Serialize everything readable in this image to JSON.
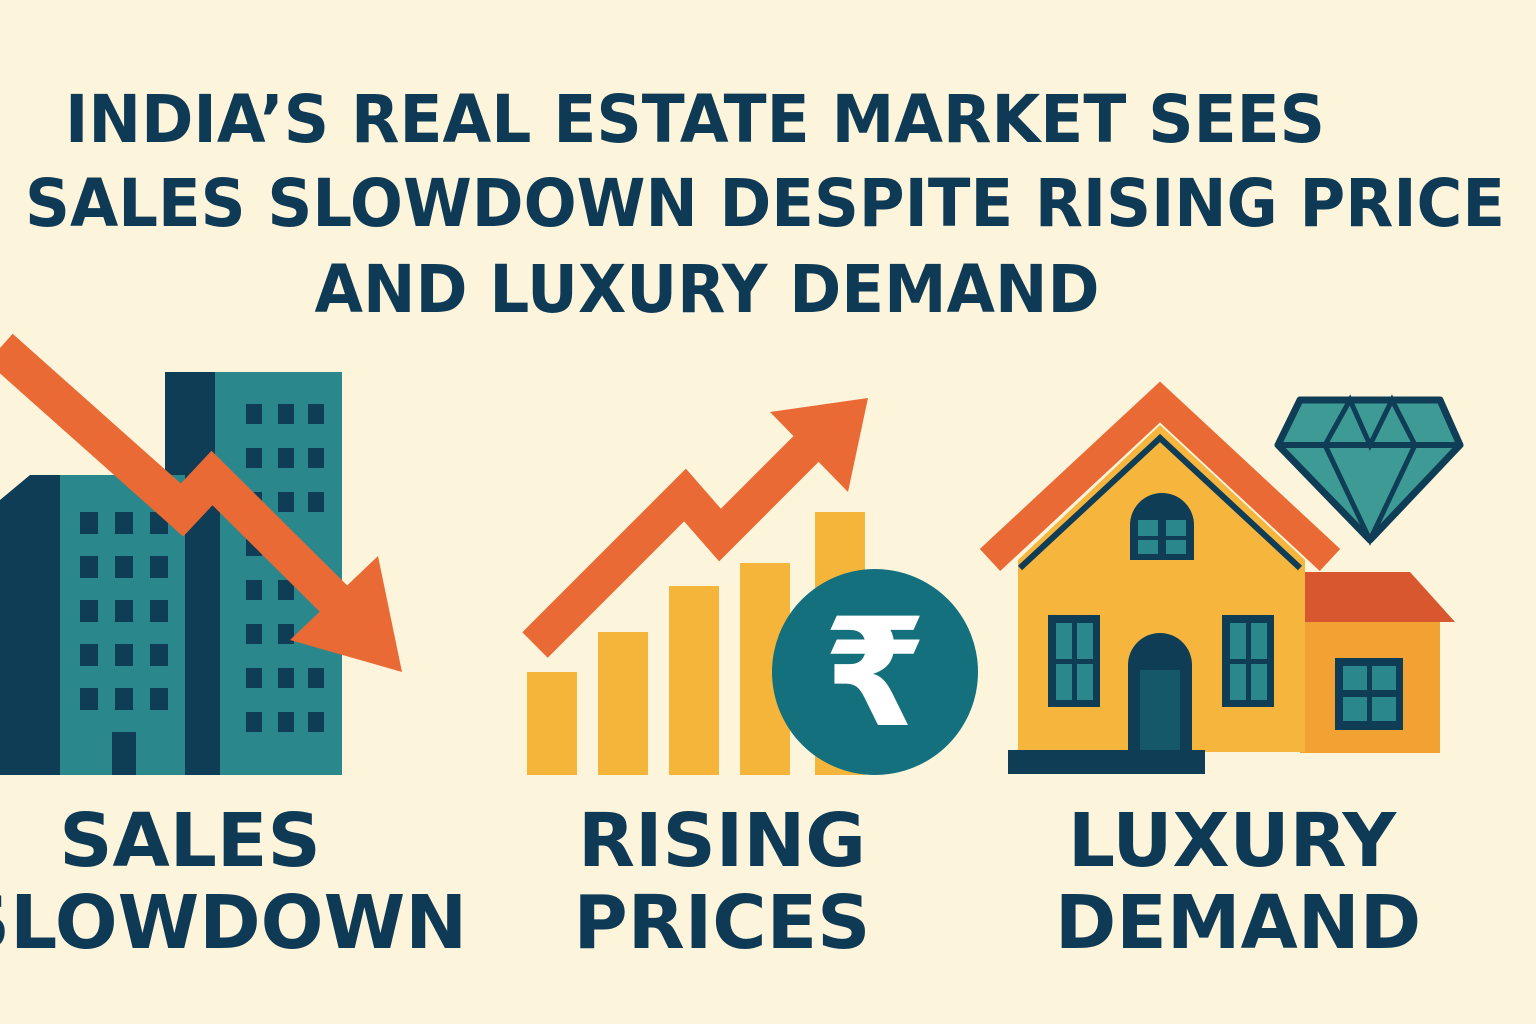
{
  "header": {
    "title_lines": [
      "INDIA’S REAL ESTATE MARKET SEES",
      "SALES SLOWDOWN DESPITE RISING PRICE",
      "AND LUXURY DEMAND"
    ]
  },
  "panels": [
    {
      "label_lines": [
        "SALES",
        "SLOWDOWN"
      ]
    },
    {
      "icon_text": "₹",
      "label_lines": [
        "RISING",
        "PRICES"
      ]
    },
    {
      "label_lines": [
        "LUXURY",
        "DEMAND"
      ]
    }
  ]
}
